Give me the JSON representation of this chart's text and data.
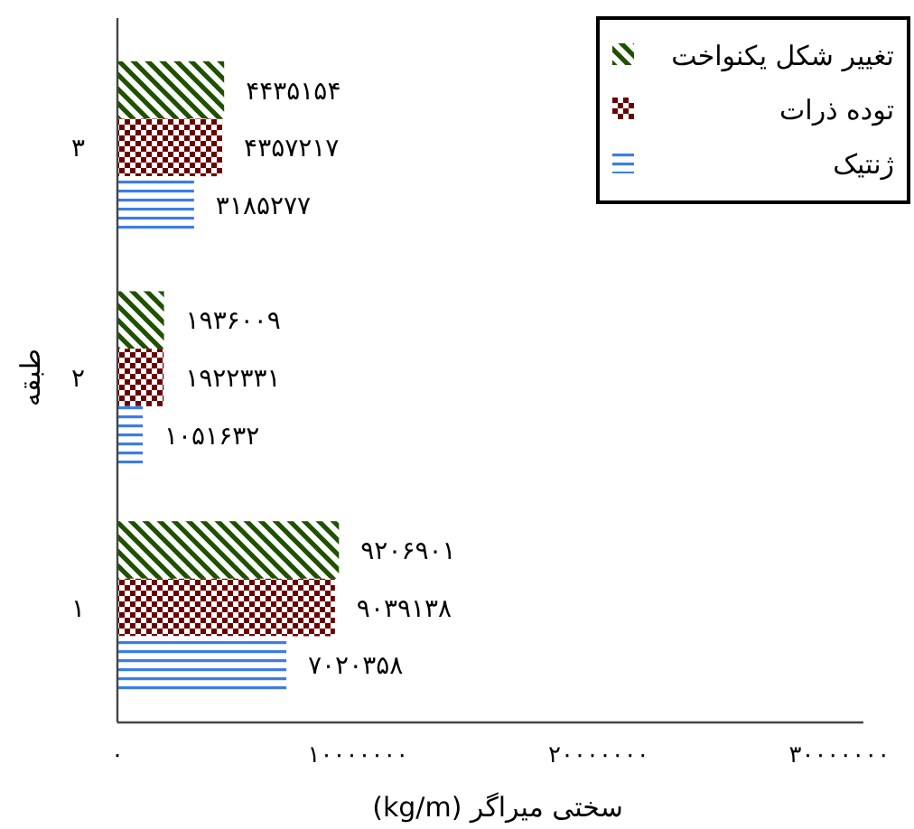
{
  "chart_data": {
    "type": "bar",
    "orientation": "horizontal",
    "categories": [
      "۳",
      "۲",
      "۱"
    ],
    "xlabel": "سختی میراگر (kg/m)",
    "ylabel": "طبقه",
    "xlim": [
      0,
      31000000
    ],
    "xticks": [
      {
        "value": 0,
        "label": "۰"
      },
      {
        "value": 10000000,
        "label": "۱۰۰۰۰۰۰۰"
      },
      {
        "value": 20000000,
        "label": "۲۰۰۰۰۰۰۰"
      },
      {
        "value": 30000000,
        "label": "۳۰۰۰۰۰۰۰"
      }
    ],
    "series": [
      {
        "name": "تغییر شکل یکنواخت",
        "color": "#1f5200",
        "values": [
          4435154,
          1936009,
          9206901
        ],
        "value_labels": [
          "۴۴۳۵۱۵۴",
          "۱۹۳۶۰۰۹",
          "۹۲۰۶۹۰۱"
        ]
      },
      {
        "name": "توده ذرات",
        "color": "#6b0000",
        "values": [
          4357217,
          1922331,
          9039138
        ],
        "value_labels": [
          "۴۳۵۷۲۱۷",
          "۱۹۲۲۳۳۱",
          "۹۰۳۹۱۳۸"
        ]
      },
      {
        "name": "ژنتیک",
        "color": "#3b7de8",
        "values": [
          3185277,
          1051632,
          7020358
        ],
        "value_labels": [
          "۳۱۸۵۲۷۷",
          "۱۰۵۱۶۳۲",
          "۷۰۲۰۳۵۸"
        ]
      }
    ],
    "grid": false,
    "legend": "top right"
  }
}
